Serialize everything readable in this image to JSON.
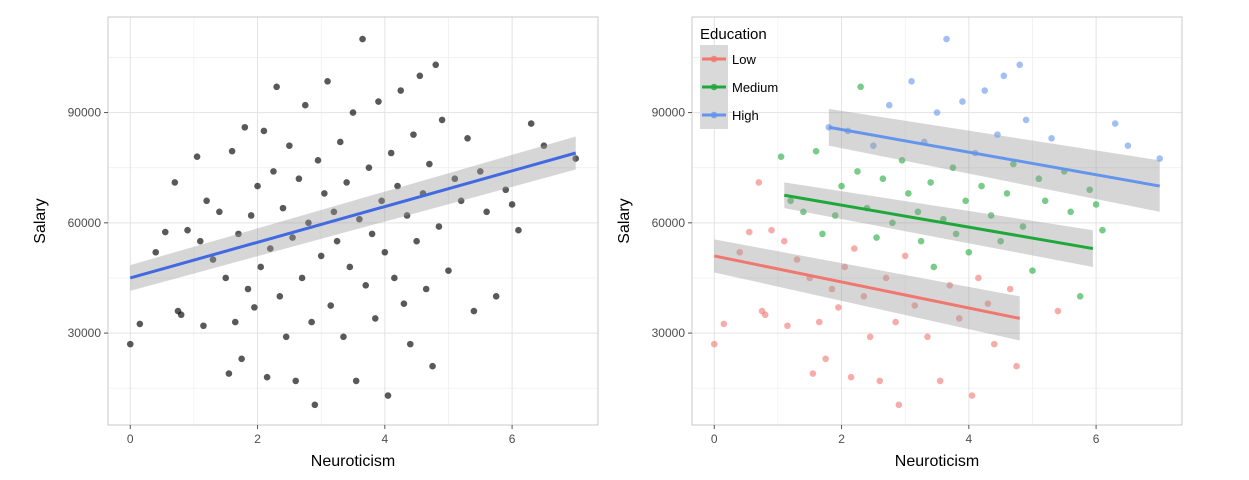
{
  "chart_data": [
    {
      "type": "scatter",
      "xlabel": "Neuroticism",
      "ylabel": "Salary",
      "xlim": [
        -0.35,
        7.35
      ],
      "ylim": [
        5000,
        116000
      ],
      "x_ticks": [
        0,
        2,
        4,
        6
      ],
      "y_ticks": [
        30000,
        60000,
        90000
      ],
      "x_tick_labels": [
        "0",
        "2",
        "4",
        "6"
      ],
      "y_tick_labels": [
        "30000",
        "60000",
        "90000"
      ],
      "grid": true,
      "point_color": "#000000",
      "series": [
        {
          "points": [
            [
              0.0,
              27000
            ],
            [
              0.15,
              32500
            ],
            [
              0.4,
              52000
            ],
            [
              0.55,
              57500
            ],
            [
              0.7,
              71000
            ],
            [
              0.75,
              36000
            ],
            [
              0.8,
              35000
            ],
            [
              0.9,
              58000
            ],
            [
              1.05,
              78000
            ],
            [
              1.1,
              55000
            ],
            [
              1.15,
              32000
            ],
            [
              1.2,
              66000
            ],
            [
              1.3,
              50000
            ],
            [
              1.4,
              63000
            ],
            [
              1.5,
              45000
            ],
            [
              1.55,
              19000
            ],
            [
              1.6,
              79500
            ],
            [
              1.65,
              33000
            ],
            [
              1.7,
              57000
            ],
            [
              1.75,
              23000
            ],
            [
              1.8,
              86000
            ],
            [
              1.85,
              42000
            ],
            [
              1.9,
              62000
            ],
            [
              1.95,
              37000
            ],
            [
              2.0,
              70000
            ],
            [
              2.05,
              48000
            ],
            [
              2.1,
              85000
            ],
            [
              2.15,
              18000
            ],
            [
              2.2,
              53000
            ],
            [
              2.25,
              74000
            ],
            [
              2.3,
              97000
            ],
            [
              2.35,
              40000
            ],
            [
              2.4,
              64000
            ],
            [
              2.45,
              29000
            ],
            [
              2.5,
              81000
            ],
            [
              2.55,
              56000
            ],
            [
              2.6,
              17000
            ],
            [
              2.65,
              72000
            ],
            [
              2.7,
              45000
            ],
            [
              2.75,
              92000
            ],
            [
              2.8,
              60000
            ],
            [
              2.85,
              33000
            ],
            [
              2.9,
              10500
            ],
            [
              2.95,
              77000
            ],
            [
              3.0,
              51000
            ],
            [
              3.05,
              68000
            ],
            [
              3.1,
              98500
            ],
            [
              3.15,
              37500
            ],
            [
              3.2,
              63000
            ],
            [
              3.25,
              55000
            ],
            [
              3.3,
              82000
            ],
            [
              3.35,
              29000
            ],
            [
              3.4,
              71000
            ],
            [
              3.45,
              48000
            ],
            [
              3.5,
              90000
            ],
            [
              3.55,
              17000
            ],
            [
              3.6,
              61000
            ],
            [
              3.65,
              110000
            ],
            [
              3.7,
              43000
            ],
            [
              3.75,
              75000
            ],
            [
              3.8,
              57000
            ],
            [
              3.85,
              34000
            ],
            [
              3.9,
              93000
            ],
            [
              3.95,
              66000
            ],
            [
              4.0,
              52000
            ],
            [
              4.05,
              13000
            ],
            [
              4.1,
              79000
            ],
            [
              4.15,
              45000
            ],
            [
              4.2,
              70000
            ],
            [
              4.25,
              96000
            ],
            [
              4.3,
              38000
            ],
            [
              4.35,
              62000
            ],
            [
              4.4,
              27000
            ],
            [
              4.45,
              84000
            ],
            [
              4.5,
              55000
            ],
            [
              4.55,
              100000
            ],
            [
              4.6,
              68000
            ],
            [
              4.65,
              42000
            ],
            [
              4.7,
              76000
            ],
            [
              4.75,
              21000
            ],
            [
              4.8,
              103000
            ],
            [
              4.85,
              59000
            ],
            [
              4.9,
              88000
            ],
            [
              5.0,
              47000
            ],
            [
              5.1,
              72000
            ],
            [
              5.2,
              66000
            ],
            [
              5.3,
              83000
            ],
            [
              5.4,
              36000
            ],
            [
              5.5,
              74000
            ],
            [
              5.6,
              63000
            ],
            [
              5.75,
              40000
            ],
            [
              5.9,
              69000
            ],
            [
              6.0,
              65000
            ],
            [
              6.1,
              58000
            ],
            [
              6.3,
              87000
            ],
            [
              6.5,
              81000
            ],
            [
              7.0,
              77500
            ]
          ]
        }
      ],
      "fit_lines": [
        {
          "color": "#4169e1",
          "x": [
            0.0,
            7.0
          ],
          "y": [
            45000,
            79000
          ],
          "band": [
            3500,
            4500
          ]
        }
      ]
    },
    {
      "type": "scatter",
      "xlabel": "Neuroticism",
      "ylabel": "Salary",
      "xlim": [
        -0.35,
        7.35
      ],
      "ylim": [
        5000,
        116000
      ],
      "x_ticks": [
        0,
        2,
        4,
        6
      ],
      "y_ticks": [
        30000,
        60000,
        90000
      ],
      "x_tick_labels": [
        "0",
        "2",
        "4",
        "6"
      ],
      "y_tick_labels": [
        "30000",
        "60000",
        "90000"
      ],
      "grid": true,
      "legend": {
        "title": "Education",
        "position": "top-left",
        "entries": [
          "Low",
          "Medium",
          "High"
        ]
      },
      "series": [
        {
          "name": "Low",
          "color": "#f0776f",
          "points": [
            [
              0.0,
              27000
            ],
            [
              0.15,
              32500
            ],
            [
              0.4,
              52000
            ],
            [
              0.55,
              57500
            ],
            [
              0.7,
              71000
            ],
            [
              0.75,
              36000
            ],
            [
              0.8,
              35000
            ],
            [
              0.9,
              58000
            ],
            [
              1.1,
              55000
            ],
            [
              1.15,
              32000
            ],
            [
              1.3,
              50000
            ],
            [
              1.5,
              45000
            ],
            [
              1.55,
              19000
            ],
            [
              1.65,
              33000
            ],
            [
              1.75,
              23000
            ],
            [
              1.85,
              42000
            ],
            [
              1.95,
              37000
            ],
            [
              2.05,
              48000
            ],
            [
              2.15,
              18000
            ],
            [
              2.2,
              53000
            ],
            [
              2.35,
              40000
            ],
            [
              2.45,
              29000
            ],
            [
              2.6,
              17000
            ],
            [
              2.7,
              45000
            ],
            [
              2.85,
              33000
            ],
            [
              2.9,
              10500
            ],
            [
              3.0,
              51000
            ],
            [
              3.15,
              37500
            ],
            [
              3.35,
              29000
            ],
            [
              3.55,
              17000
            ],
            [
              3.7,
              43000
            ],
            [
              3.85,
              34000
            ],
            [
              4.05,
              13000
            ],
            [
              4.15,
              45000
            ],
            [
              4.3,
              38000
            ],
            [
              4.4,
              27000
            ],
            [
              4.65,
              42000
            ],
            [
              4.75,
              21000
            ],
            [
              5.4,
              36000
            ]
          ]
        },
        {
          "name": "Medium",
          "color": "#1fa83a",
          "points": [
            [
              1.05,
              78000
            ],
            [
              1.2,
              66000
            ],
            [
              1.4,
              63000
            ],
            [
              1.6,
              79500
            ],
            [
              1.7,
              57000
            ],
            [
              1.9,
              62000
            ],
            [
              2.0,
              70000
            ],
            [
              2.25,
              74000
            ],
            [
              2.3,
              97000
            ],
            [
              2.4,
              64000
            ],
            [
              2.55,
              56000
            ],
            [
              2.65,
              72000
            ],
            [
              2.8,
              60000
            ],
            [
              2.95,
              77000
            ],
            [
              3.05,
              68000
            ],
            [
              3.2,
              63000
            ],
            [
              3.25,
              55000
            ],
            [
              3.4,
              71000
            ],
            [
              3.45,
              48000
            ],
            [
              3.6,
              61000
            ],
            [
              3.75,
              75000
            ],
            [
              3.8,
              57000
            ],
            [
              3.95,
              66000
            ],
            [
              4.0,
              52000
            ],
            [
              4.2,
              70000
            ],
            [
              4.35,
              62000
            ],
            [
              4.5,
              55000
            ],
            [
              4.6,
              68000
            ],
            [
              4.7,
              76000
            ],
            [
              4.85,
              59000
            ],
            [
              5.0,
              47000
            ],
            [
              5.1,
              72000
            ],
            [
              5.2,
              66000
            ],
            [
              5.5,
              74000
            ],
            [
              5.6,
              63000
            ],
            [
              5.75,
              40000
            ],
            [
              5.9,
              69000
            ],
            [
              6.0,
              65000
            ],
            [
              6.1,
              58000
            ]
          ]
        },
        {
          "name": "High",
          "color": "#6495ed",
          "points": [
            [
              1.8,
              86000
            ],
            [
              2.1,
              85000
            ],
            [
              2.5,
              81000
            ],
            [
              2.75,
              92000
            ],
            [
              3.1,
              98500
            ],
            [
              3.3,
              82000
            ],
            [
              3.5,
              90000
            ],
            [
              3.65,
              110000
            ],
            [
              3.9,
              93000
            ],
            [
              4.1,
              79000
            ],
            [
              4.25,
              96000
            ],
            [
              4.45,
              84000
            ],
            [
              4.55,
              100000
            ],
            [
              4.8,
              103000
            ],
            [
              4.9,
              88000
            ],
            [
              5.3,
              83000
            ],
            [
              6.3,
              87000
            ],
            [
              6.5,
              81000
            ],
            [
              7.0,
              77500
            ]
          ]
        }
      ],
      "fit_lines": [
        {
          "color": "#f0776f",
          "x": [
            0.0,
            4.8
          ],
          "y": [
            51000,
            34000
          ],
          "band": [
            4500,
            6000
          ]
        },
        {
          "color": "#1fa83a",
          "x": [
            1.1,
            5.95
          ],
          "y": [
            67500,
            53000
          ],
          "band": [
            3500,
            5000
          ]
        },
        {
          "color": "#6495ed",
          "x": [
            1.8,
            7.0
          ],
          "y": [
            86000,
            70000
          ],
          "band": [
            5000,
            7000
          ]
        }
      ]
    }
  ]
}
